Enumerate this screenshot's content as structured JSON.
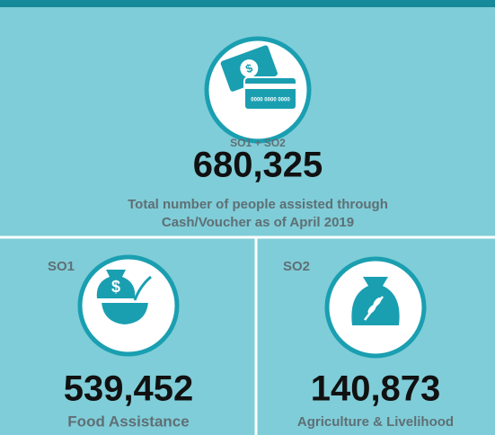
{
  "total": {
    "badge": "SO1 + SO2",
    "value": "680,325",
    "caption_line1": "Total number of people assisted through",
    "caption_line2": "Cash/Voucher as of April 2019"
  },
  "panels": [
    {
      "tag": "SO1",
      "value": "539,452",
      "label": "Food Assistance"
    },
    {
      "tag": "SO2",
      "value": "140,873",
      "label": "Agriculture & Livelihood"
    }
  ]
}
